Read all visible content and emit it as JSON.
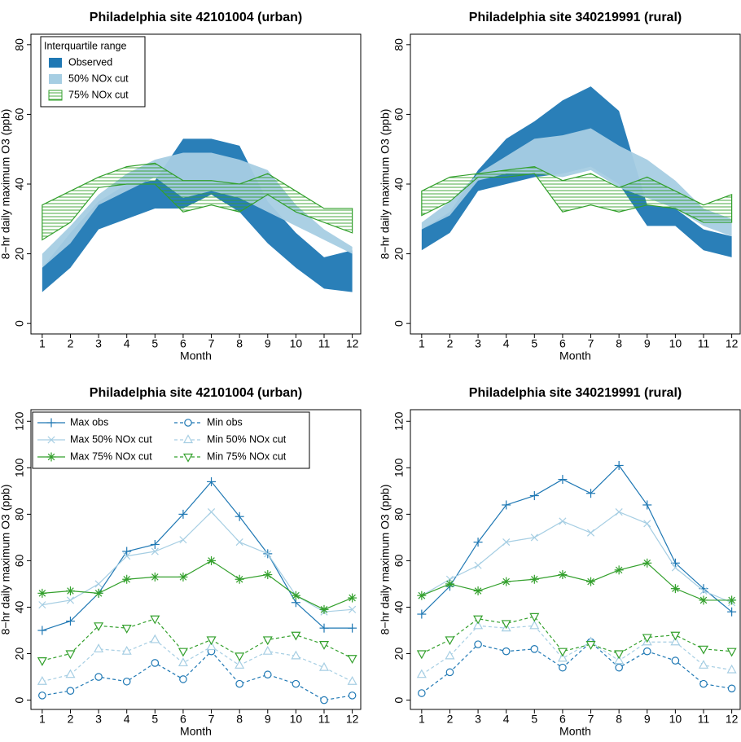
{
  "chart_data": [
    {
      "type": "band",
      "title": "Philadelphia site 42101004 (urban)",
      "xlabel": "Month",
      "ylabel": "8−hr daily maximum O3 (ppb)",
      "x": [
        1,
        2,
        3,
        4,
        5,
        6,
        7,
        8,
        9,
        10,
        11,
        12
      ],
      "xlim": [
        0.6,
        12.3
      ],
      "xticks": [
        1,
        2,
        3,
        4,
        5,
        6,
        7,
        8,
        9,
        10,
        11,
        12
      ],
      "ylim": [
        -3,
        83
      ],
      "yticks": [
        0,
        20,
        40,
        60,
        80
      ],
      "legend": "top-left",
      "legend_title": "Interquartile range",
      "series": [
        {
          "name": "Observed",
          "color": "#1f78b4",
          "hatch": false,
          "low": [
            9,
            16,
            27,
            30,
            33,
            33,
            37,
            32,
            23,
            16,
            10,
            9
          ],
          "high": [
            16,
            26,
            35,
            40,
            41,
            53,
            53,
            51,
            35,
            26,
            19,
            21
          ]
        },
        {
          "name": "50% NOx cut",
          "color": "#a6cee3",
          "hatch": false,
          "low": [
            16,
            23,
            34,
            38,
            42,
            36,
            38,
            36,
            32,
            28,
            24,
            20
          ],
          "high": [
            20,
            28,
            37,
            43,
            47,
            49,
            49,
            47,
            44,
            34,
            27,
            22
          ]
        },
        {
          "name": "75% NOx cut",
          "color": "#33a02c",
          "hatch": true,
          "low": [
            24,
            29,
            39,
            40,
            40,
            32,
            34,
            32,
            37,
            32,
            29,
            26
          ],
          "high": [
            34,
            38,
            42,
            45,
            46,
            41,
            41,
            40,
            43,
            38,
            33,
            33
          ]
        }
      ]
    },
    {
      "type": "band",
      "title": "Philadelphia site 340219991 (rural)",
      "xlabel": "Month",
      "ylabel": "8−hr daily maximum O3 (ppb)",
      "x": [
        1,
        2,
        3,
        4,
        5,
        6,
        7,
        8,
        9,
        10,
        11,
        12
      ],
      "xlim": [
        0.6,
        12.3
      ],
      "xticks": [
        1,
        2,
        3,
        4,
        5,
        6,
        7,
        8,
        9,
        10,
        11,
        12
      ],
      "ylim": [
        -3,
        83
      ],
      "yticks": [
        0,
        20,
        40,
        60,
        80
      ],
      "series": [
        {
          "name": "Observed",
          "color": "#1f78b4",
          "hatch": false,
          "low": [
            21,
            26,
            38,
            40,
            42,
            43,
            45,
            40,
            28,
            28,
            21,
            19
          ],
          "high": [
            27,
            32,
            44,
            53,
            58,
            64,
            68,
            61,
            34,
            33,
            27,
            25
          ]
        },
        {
          "name": "50% NOx cut",
          "color": "#a6cee3",
          "hatch": false,
          "low": [
            27,
            31,
            41,
            43,
            43,
            42,
            44,
            39,
            36,
            33,
            28,
            25
          ],
          "high": [
            29,
            35,
            43,
            48,
            53,
            54,
            56,
            51,
            47,
            41,
            33,
            30
          ]
        },
        {
          "name": "75% NOx cut",
          "color": "#33a02c",
          "hatch": true,
          "low": [
            31,
            35,
            42,
            42,
            43,
            32,
            34,
            32,
            34,
            33,
            29,
            29
          ],
          "high": [
            38,
            42,
            43,
            44,
            45,
            41,
            43,
            39,
            42,
            38,
            34,
            37
          ]
        }
      ]
    },
    {
      "type": "line",
      "title": "Philadelphia site 42101004 (urban)",
      "xlabel": "Month",
      "ylabel": "8−hr daily maximum O3 (ppb)",
      "x": [
        1,
        2,
        3,
        4,
        5,
        6,
        7,
        8,
        9,
        10,
        11,
        12
      ],
      "xlim": [
        0.6,
        12.3
      ],
      "xticks": [
        1,
        2,
        3,
        4,
        5,
        6,
        7,
        8,
        9,
        10,
        11,
        12
      ],
      "ylim": [
        -4,
        125
      ],
      "yticks": [
        0,
        20,
        40,
        60,
        80,
        100,
        120
      ],
      "legend": "top-left",
      "series": [
        {
          "name": "Max obs",
          "color": "#1f78b4",
          "marker": "plus",
          "dashed": false,
          "values": [
            30,
            34,
            46,
            64,
            67,
            80,
            94,
            79,
            63,
            42,
            31,
            31
          ]
        },
        {
          "name": "Max 50% NOx cut",
          "color": "#a6cee3",
          "marker": "cross",
          "dashed": false,
          "values": [
            41,
            43,
            50,
            62,
            64,
            69,
            81,
            68,
            63,
            45,
            38,
            39
          ]
        },
        {
          "name": "Max 75% NOx cut",
          "color": "#33a02c",
          "marker": "star",
          "dashed": false,
          "values": [
            46,
            47,
            46,
            52,
            53,
            53,
            60,
            52,
            54,
            45,
            39,
            44
          ]
        },
        {
          "name": "Min obs",
          "color": "#1f78b4",
          "marker": "circle",
          "dashed": true,
          "values": [
            2,
            4,
            10,
            8,
            16,
            9,
            21,
            7,
            11,
            7,
            0,
            2
          ]
        },
        {
          "name": "Min 50% NOx cut",
          "color": "#a6cee3",
          "marker": "triangle-up",
          "dashed": true,
          "values": [
            8,
            11,
            22,
            21,
            26,
            16,
            23,
            15,
            21,
            19,
            14,
            8
          ]
        },
        {
          "name": "Min 75% NOx cut",
          "color": "#33a02c",
          "marker": "triangle-down",
          "dashed": true,
          "values": [
            17,
            20,
            32,
            31,
            35,
            21,
            26,
            19,
            26,
            28,
            24,
            18
          ]
        }
      ]
    },
    {
      "type": "line",
      "title": "Philadelphia site 340219991 (rural)",
      "xlabel": "Month",
      "ylabel": "8−hr daily maximum O3 (ppb)",
      "x": [
        1,
        2,
        3,
        4,
        5,
        6,
        7,
        8,
        9,
        10,
        11,
        12
      ],
      "xlim": [
        0.6,
        12.3
      ],
      "xticks": [
        1,
        2,
        3,
        4,
        5,
        6,
        7,
        8,
        9,
        10,
        11,
        12
      ],
      "ylim": [
        -4,
        125
      ],
      "yticks": [
        0,
        20,
        40,
        60,
        80,
        100,
        120
      ],
      "series": [
        {
          "name": "Max obs",
          "color": "#1f78b4",
          "marker": "plus",
          "dashed": false,
          "values": [
            37,
            49,
            68,
            84,
            88,
            95,
            89,
            101,
            84,
            59,
            48,
            38
          ]
        },
        {
          "name": "Max 50% NOx cut",
          "color": "#a6cee3",
          "marker": "cross",
          "dashed": false,
          "values": [
            45,
            52,
            58,
            68,
            70,
            77,
            72,
            81,
            76,
            57,
            47,
            42
          ]
        },
        {
          "name": "Max 75% NOx cut",
          "color": "#33a02c",
          "marker": "star",
          "dashed": false,
          "values": [
            45,
            50,
            47,
            51,
            52,
            54,
            51,
            56,
            59,
            48,
            43,
            43
          ]
        },
        {
          "name": "Min obs",
          "color": "#1f78b4",
          "marker": "circle",
          "dashed": true,
          "values": [
            3,
            12,
            24,
            21,
            22,
            14,
            25,
            14,
            21,
            17,
            7,
            5
          ]
        },
        {
          "name": "Min 50% NOx cut",
          "color": "#a6cee3",
          "marker": "triangle-up",
          "dashed": true,
          "values": [
            11,
            19,
            32,
            31,
            32,
            18,
            25,
            17,
            25,
            25,
            15,
            13
          ]
        },
        {
          "name": "Min 75% NOx cut",
          "color": "#33a02c",
          "marker": "triangle-down",
          "dashed": true,
          "values": [
            20,
            26,
            35,
            33,
            36,
            21,
            24,
            20,
            27,
            28,
            22,
            21
          ]
        }
      ]
    }
  ]
}
